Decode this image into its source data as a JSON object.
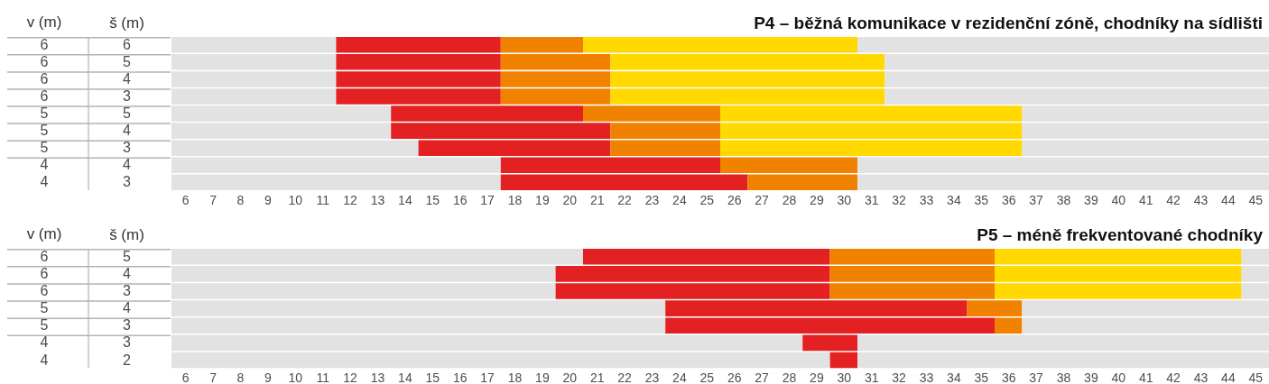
{
  "chart_data": [
    {
      "type": "bar",
      "orientation": "horizontal",
      "title": "P4 – běžná komunikace v rezidenční zóně, chodníky na sídlišti",
      "ylabel": "š (m)",
      "categories": [
        "6",
        "5",
        "4",
        "3",
        "5",
        "4",
        "3",
        "4",
        "3"
      ],
      "annotations": [
        "v (m)",
        "6",
        "6",
        "6",
        "6",
        "5",
        "5",
        "5",
        "4",
        "4"
      ],
      "xlim": [
        5.5,
        45.5
      ],
      "xticks": [
        6,
        7,
        8,
        9,
        10,
        11,
        12,
        13,
        14,
        15,
        16,
        17,
        18,
        19,
        20,
        21,
        22,
        23,
        24,
        25,
        26,
        27,
        28,
        29,
        30,
        31,
        32,
        33,
        34,
        35,
        36,
        37,
        38,
        39,
        40,
        41,
        42,
        43,
        44,
        45
      ],
      "series": [
        {
          "color": "#e2e2e2",
          "base": [
            5.5,
            5.5,
            5.5,
            5.5,
            5.5,
            5.5,
            5.5,
            5.5,
            5.5
          ],
          "values": [
            6,
            6,
            6,
            6,
            8,
            8,
            9,
            12,
            12
          ]
        },
        {
          "color": "#e32022",
          "base": [
            11.5,
            11.5,
            11.5,
            11.5,
            13.5,
            13.5,
            14.5,
            17.5,
            17.5
          ],
          "values": [
            6,
            6,
            6,
            6,
            7,
            8,
            7,
            8,
            9
          ]
        },
        {
          "color": "#f08200",
          "base": [
            17.5,
            17.5,
            17.5,
            17.5,
            20.5,
            21.5,
            21.5,
            25.5,
            26.5
          ],
          "values": [
            3,
            4,
            4,
            4,
            5,
            4,
            4,
            5,
            4
          ]
        },
        {
          "color": "#ffd900",
          "base": [
            20.5,
            21.5,
            21.5,
            21.5,
            25.5,
            25.5,
            25.5,
            null,
            null
          ],
          "values": [
            10,
            10,
            10,
            10,
            11,
            11,
            11,
            null,
            null
          ]
        },
        {
          "color": "#e2e2e2",
          "base": [
            30.5,
            31.5,
            31.5,
            31.5,
            36.5,
            36.5,
            36.5,
            30.5,
            30.5
          ],
          "values": [
            15,
            14,
            14,
            14,
            9,
            9,
            9,
            15,
            15
          ]
        }
      ]
    },
    {
      "type": "bar",
      "orientation": "horizontal",
      "title": "P5 – méně frekventované chodníky",
      "ylabel": "š (m)",
      "categories": [
        "5",
        "4",
        "3",
        "4",
        "3",
        "3",
        "2"
      ],
      "annotations": [
        "v (m)",
        "6",
        "6",
        "6",
        "5",
        "5",
        "4",
        "4"
      ],
      "xlim": [
        5.5,
        45.5
      ],
      "xticks": [
        6,
        7,
        8,
        9,
        10,
        11,
        12,
        13,
        14,
        15,
        16,
        17,
        18,
        19,
        20,
        21,
        22,
        23,
        24,
        25,
        26,
        27,
        28,
        29,
        30,
        31,
        32,
        33,
        34,
        35,
        36,
        37,
        38,
        39,
        40,
        41,
        42,
        43,
        44,
        45
      ],
      "series": [
        {
          "color": "#e2e2e2",
          "base": [
            5.5,
            5.5,
            5.5,
            5.5,
            5.5,
            5.5,
            5.5
          ],
          "values": [
            15,
            14,
            14,
            18,
            18,
            23,
            24
          ]
        },
        {
          "color": "#e32022",
          "base": [
            20.5,
            19.5,
            19.5,
            23.5,
            23.5,
            28.5,
            29.5
          ],
          "values": [
            9,
            10,
            10,
            11,
            12,
            2,
            1
          ]
        },
        {
          "color": "#f08200",
          "base": [
            29.5,
            29.5,
            29.5,
            34.5,
            35.5,
            null,
            null
          ],
          "values": [
            6,
            6,
            6,
            2,
            1,
            null,
            null
          ]
        },
        {
          "color": "#ffd900",
          "base": [
            35.5,
            35.5,
            35.5,
            null,
            null,
            null,
            null
          ],
          "values": [
            9,
            9,
            9,
            null,
            null,
            null,
            null
          ]
        },
        {
          "color": "#e2e2e2",
          "base": [
            44.5,
            44.5,
            44.5,
            36.5,
            36.5,
            30.5,
            30.5
          ],
          "values": [
            1,
            1,
            1,
            9,
            9,
            15,
            15
          ]
        }
      ]
    }
  ]
}
